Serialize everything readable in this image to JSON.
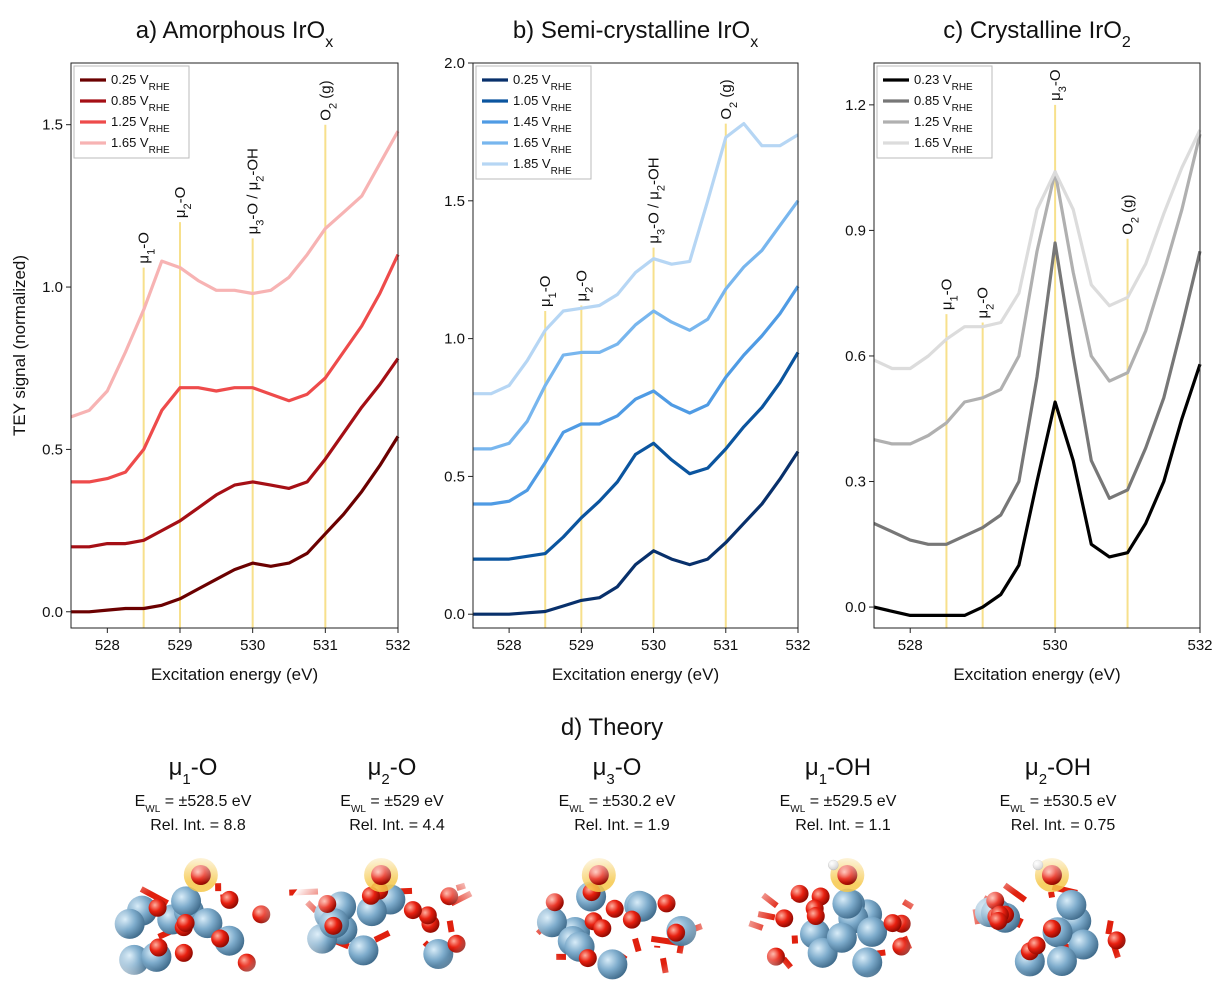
{
  "chart_data": [
    {
      "type": "line",
      "title": [
        "a) Amorphous IrO",
        "x"
      ],
      "xlabel": "Excitation energy (eV)",
      "ylabel": "TEY signal (normalized)",
      "x": [
        527.5,
        527.75,
        528,
        528.25,
        528.5,
        528.75,
        529,
        529.25,
        529.5,
        529.75,
        530,
        530.25,
        530.5,
        530.75,
        531,
        531.25,
        531.5,
        531.75,
        532
      ],
      "xlim": [
        527.5,
        532
      ],
      "xticks": [
        528,
        529,
        530,
        531,
        532
      ],
      "ylim": [
        -0.05,
        1.69
      ],
      "yticks": [
        {
          "value": 0,
          "label": "0.0"
        },
        0.5,
        {
          "value": 1,
          "label": "1.0"
        },
        1.5
      ],
      "legend": "upper left",
      "series": [
        {
          "name": [
            "0.25 V",
            "RHE"
          ],
          "color": "#6b0000",
          "values": [
            0,
            0,
            0.005,
            0.01,
            0.01,
            0.02,
            0.04,
            0.07,
            0.1,
            0.13,
            0.15,
            0.14,
            0.15,
            0.18,
            0.24,
            0.3,
            0.37,
            0.45,
            0.54
          ]
        },
        {
          "name": [
            "0.85 V",
            "RHE"
          ],
          "color": "#a50f15",
          "values": [
            0.2,
            0.2,
            0.21,
            0.21,
            0.22,
            0.25,
            0.28,
            0.32,
            0.36,
            0.39,
            0.4,
            0.39,
            0.38,
            0.4,
            0.47,
            0.55,
            0.63,
            0.7,
            0.78
          ]
        },
        {
          "name": [
            "1.25 V",
            "RHE"
          ],
          "color": "#ee4b4b",
          "values": [
            0.4,
            0.4,
            0.41,
            0.43,
            0.5,
            0.62,
            0.69,
            0.69,
            0.68,
            0.69,
            0.69,
            0.67,
            0.65,
            0.67,
            0.72,
            0.8,
            0.88,
            0.98,
            1.1
          ]
        },
        {
          "name": [
            "1.65 V",
            "RHE"
          ],
          "color": "#f7b3b3",
          "values": [
            0.6,
            0.62,
            0.68,
            0.8,
            0.93,
            1.08,
            1.06,
            1.02,
            0.99,
            0.99,
            0.98,
            0.99,
            1.03,
            1.1,
            1.18,
            1.23,
            1.28,
            1.38,
            1.48
          ]
        }
      ],
      "annotations": [
        {
          "x": 528.5,
          "y": 1.06,
          "label": [
            "μ",
            "1",
            "-O"
          ]
        },
        {
          "x": 529,
          "y": 1.2,
          "label": [
            "μ",
            "2",
            "-O"
          ]
        },
        {
          "x": 530,
          "y": 1.15,
          "label": [
            "μ",
            "3",
            "-O / μ",
            "2",
            "-OH"
          ]
        },
        {
          "x": 531,
          "y": 1.5,
          "label": [
            "O",
            "2",
            " (g)"
          ]
        }
      ]
    },
    {
      "type": "line",
      "title": [
        "b) Semi-crystalline IrO",
        "x"
      ],
      "xlabel": "Excitation energy (eV)",
      "x": [
        527.5,
        527.75,
        528,
        528.25,
        528.5,
        528.75,
        529,
        529.25,
        529.5,
        529.75,
        530,
        530.25,
        530.5,
        530.75,
        531,
        531.25,
        531.5,
        531.75,
        532
      ],
      "xlim": [
        527.5,
        532
      ],
      "xticks": [
        528,
        529,
        530,
        531,
        532
      ],
      "ylim": [
        -0.05,
        2.0
      ],
      "yticks": [
        {
          "value": 0,
          "label": "0.0"
        },
        0.5,
        {
          "value": 1,
          "label": "1.0"
        },
        1.5,
        {
          "value": 2,
          "label": "2.0"
        }
      ],
      "legend": "upper left",
      "series": [
        {
          "name": [
            "0.25 V",
            "RHE"
          ],
          "color": "#08306b",
          "values": [
            0,
            0,
            0,
            0.005,
            0.01,
            0.03,
            0.05,
            0.06,
            0.1,
            0.18,
            0.23,
            0.2,
            0.18,
            0.2,
            0.26,
            0.33,
            0.4,
            0.49,
            0.59
          ]
        },
        {
          "name": [
            "1.05 V",
            "RHE"
          ],
          "color": "#0b559f",
          "values": [
            0.2,
            0.2,
            0.2,
            0.21,
            0.22,
            0.28,
            0.35,
            0.41,
            0.48,
            0.58,
            0.62,
            0.56,
            0.51,
            0.53,
            0.6,
            0.68,
            0.75,
            0.84,
            0.95
          ]
        },
        {
          "name": [
            "1.45 V",
            "RHE"
          ],
          "color": "#4f9be4",
          "values": [
            0.4,
            0.4,
            0.41,
            0.45,
            0.55,
            0.66,
            0.69,
            0.69,
            0.72,
            0.78,
            0.81,
            0.76,
            0.73,
            0.76,
            0.86,
            0.94,
            1.01,
            1.09,
            1.19
          ]
        },
        {
          "name": [
            "1.65 V",
            "RHE"
          ],
          "color": "#78b6ee",
          "values": [
            0.6,
            0.6,
            0.62,
            0.7,
            0.83,
            0.94,
            0.95,
            0.95,
            0.98,
            1.05,
            1.1,
            1.06,
            1.03,
            1.07,
            1.18,
            1.26,
            1.32,
            1.41,
            1.5
          ]
        },
        {
          "name": [
            "1.85 V",
            "RHE"
          ],
          "color": "#b6d6f4",
          "values": [
            0.8,
            0.8,
            0.83,
            0.92,
            1.03,
            1.1,
            1.11,
            1.12,
            1.16,
            1.24,
            1.29,
            1.27,
            1.28,
            1.5,
            1.73,
            1.78,
            1.7,
            1.7,
            1.74
          ]
        }
      ],
      "annotations": [
        {
          "x": 528.5,
          "y": 1.1,
          "label": [
            "μ",
            "1",
            "-O"
          ]
        },
        {
          "x": 529,
          "y": 1.12,
          "label": [
            "μ",
            "2",
            "-O"
          ]
        },
        {
          "x": 530,
          "y": 1.33,
          "label": [
            "μ",
            "3",
            "-O / μ",
            "2",
            "-OH"
          ]
        },
        {
          "x": 531,
          "y": 1.78,
          "label": [
            "O",
            "2",
            " (g)"
          ]
        }
      ]
    },
    {
      "type": "line",
      "title": [
        "c) Crystalline IrO",
        "2"
      ],
      "xlabel": "Excitation energy (eV)",
      "x": [
        527.5,
        527.75,
        528,
        528.25,
        528.5,
        528.75,
        529,
        529.25,
        529.5,
        529.75,
        530,
        530.25,
        530.5,
        530.75,
        531,
        531.25,
        531.5,
        531.75,
        532
      ],
      "xlim": [
        527.5,
        532
      ],
      "xticks": [
        528,
        530,
        532
      ],
      "ylim": [
        -0.05,
        1.3
      ],
      "yticks": [
        {
          "value": 0,
          "label": "0.0"
        },
        0.3,
        0.6,
        0.9,
        1.2
      ],
      "legend": "upper left",
      "series": [
        {
          "name": [
            "0.23 V",
            "RHE"
          ],
          "color": "#000000",
          "values": [
            0,
            -0.01,
            -0.02,
            -0.02,
            -0.02,
            -0.02,
            0,
            0.03,
            0.1,
            0.3,
            0.49,
            0.35,
            0.15,
            0.12,
            0.13,
            0.2,
            0.3,
            0.45,
            0.58
          ]
        },
        {
          "name": [
            "0.85 V",
            "RHE"
          ],
          "color": "#777777",
          "values": [
            0.2,
            0.18,
            0.16,
            0.15,
            0.15,
            0.17,
            0.19,
            0.22,
            0.3,
            0.55,
            0.87,
            0.6,
            0.35,
            0.26,
            0.28,
            0.38,
            0.5,
            0.67,
            0.85
          ]
        },
        {
          "name": [
            "1.25 V",
            "RHE"
          ],
          "color": "#b0b0b0",
          "values": [
            0.4,
            0.39,
            0.39,
            0.41,
            0.44,
            0.49,
            0.5,
            0.52,
            0.6,
            0.85,
            1.04,
            0.8,
            0.6,
            0.54,
            0.56,
            0.66,
            0.8,
            0.95,
            1.13
          ]
        },
        {
          "name": [
            "1.65 V",
            "RHE"
          ],
          "color": "#dcdcdc",
          "values": [
            0.59,
            0.57,
            0.57,
            0.6,
            0.64,
            0.67,
            0.67,
            0.68,
            0.75,
            0.95,
            1.04,
            0.95,
            0.77,
            0.72,
            0.74,
            0.82,
            0.94,
            1.05,
            1.14
          ]
        }
      ],
      "annotations": [
        {
          "x": 528.5,
          "y": 0.7,
          "label": [
            "μ",
            "1",
            "-O"
          ]
        },
        {
          "x": 529,
          "y": 0.68,
          "label": [
            "μ",
            "2",
            "-O"
          ]
        },
        {
          "x": 530,
          "y": 1.2,
          "label": [
            "μ",
            "3",
            "-O"
          ]
        },
        {
          "x": 531,
          "y": 0.88,
          "label": [
            "O",
            "2",
            " (g)"
          ]
        }
      ]
    }
  ],
  "theory": {
    "title": "d) Theory",
    "items": [
      {
        "name": [
          "μ",
          "1",
          "-O"
        ],
        "energy": [
          "E",
          "WL",
          " = ±528.5 eV"
        ],
        "intensity": "Rel. Int. = 8.8"
      },
      {
        "name": [
          "μ",
          "2",
          "-O"
        ],
        "energy": [
          "E",
          "WL",
          " = ±529 eV"
        ],
        "intensity": "Rel. Int. = 4.4"
      },
      {
        "name": [
          "μ",
          "3",
          "-O"
        ],
        "energy": [
          "E",
          "WL",
          " = ±530.2 eV"
        ],
        "intensity": "Rel. Int. = 1.9"
      },
      {
        "name": [
          "μ",
          "1",
          "-OH"
        ],
        "energy": [
          "E",
          "WL",
          " = ±529.5 eV"
        ],
        "intensity": "Rel. Int. = 1.1"
      },
      {
        "name": [
          "μ",
          "2",
          "-OH"
        ],
        "energy": [
          "E",
          "WL",
          " = ±530.5 eV"
        ],
        "intensity": "Rel. Int. = 0.75"
      }
    ]
  }
}
